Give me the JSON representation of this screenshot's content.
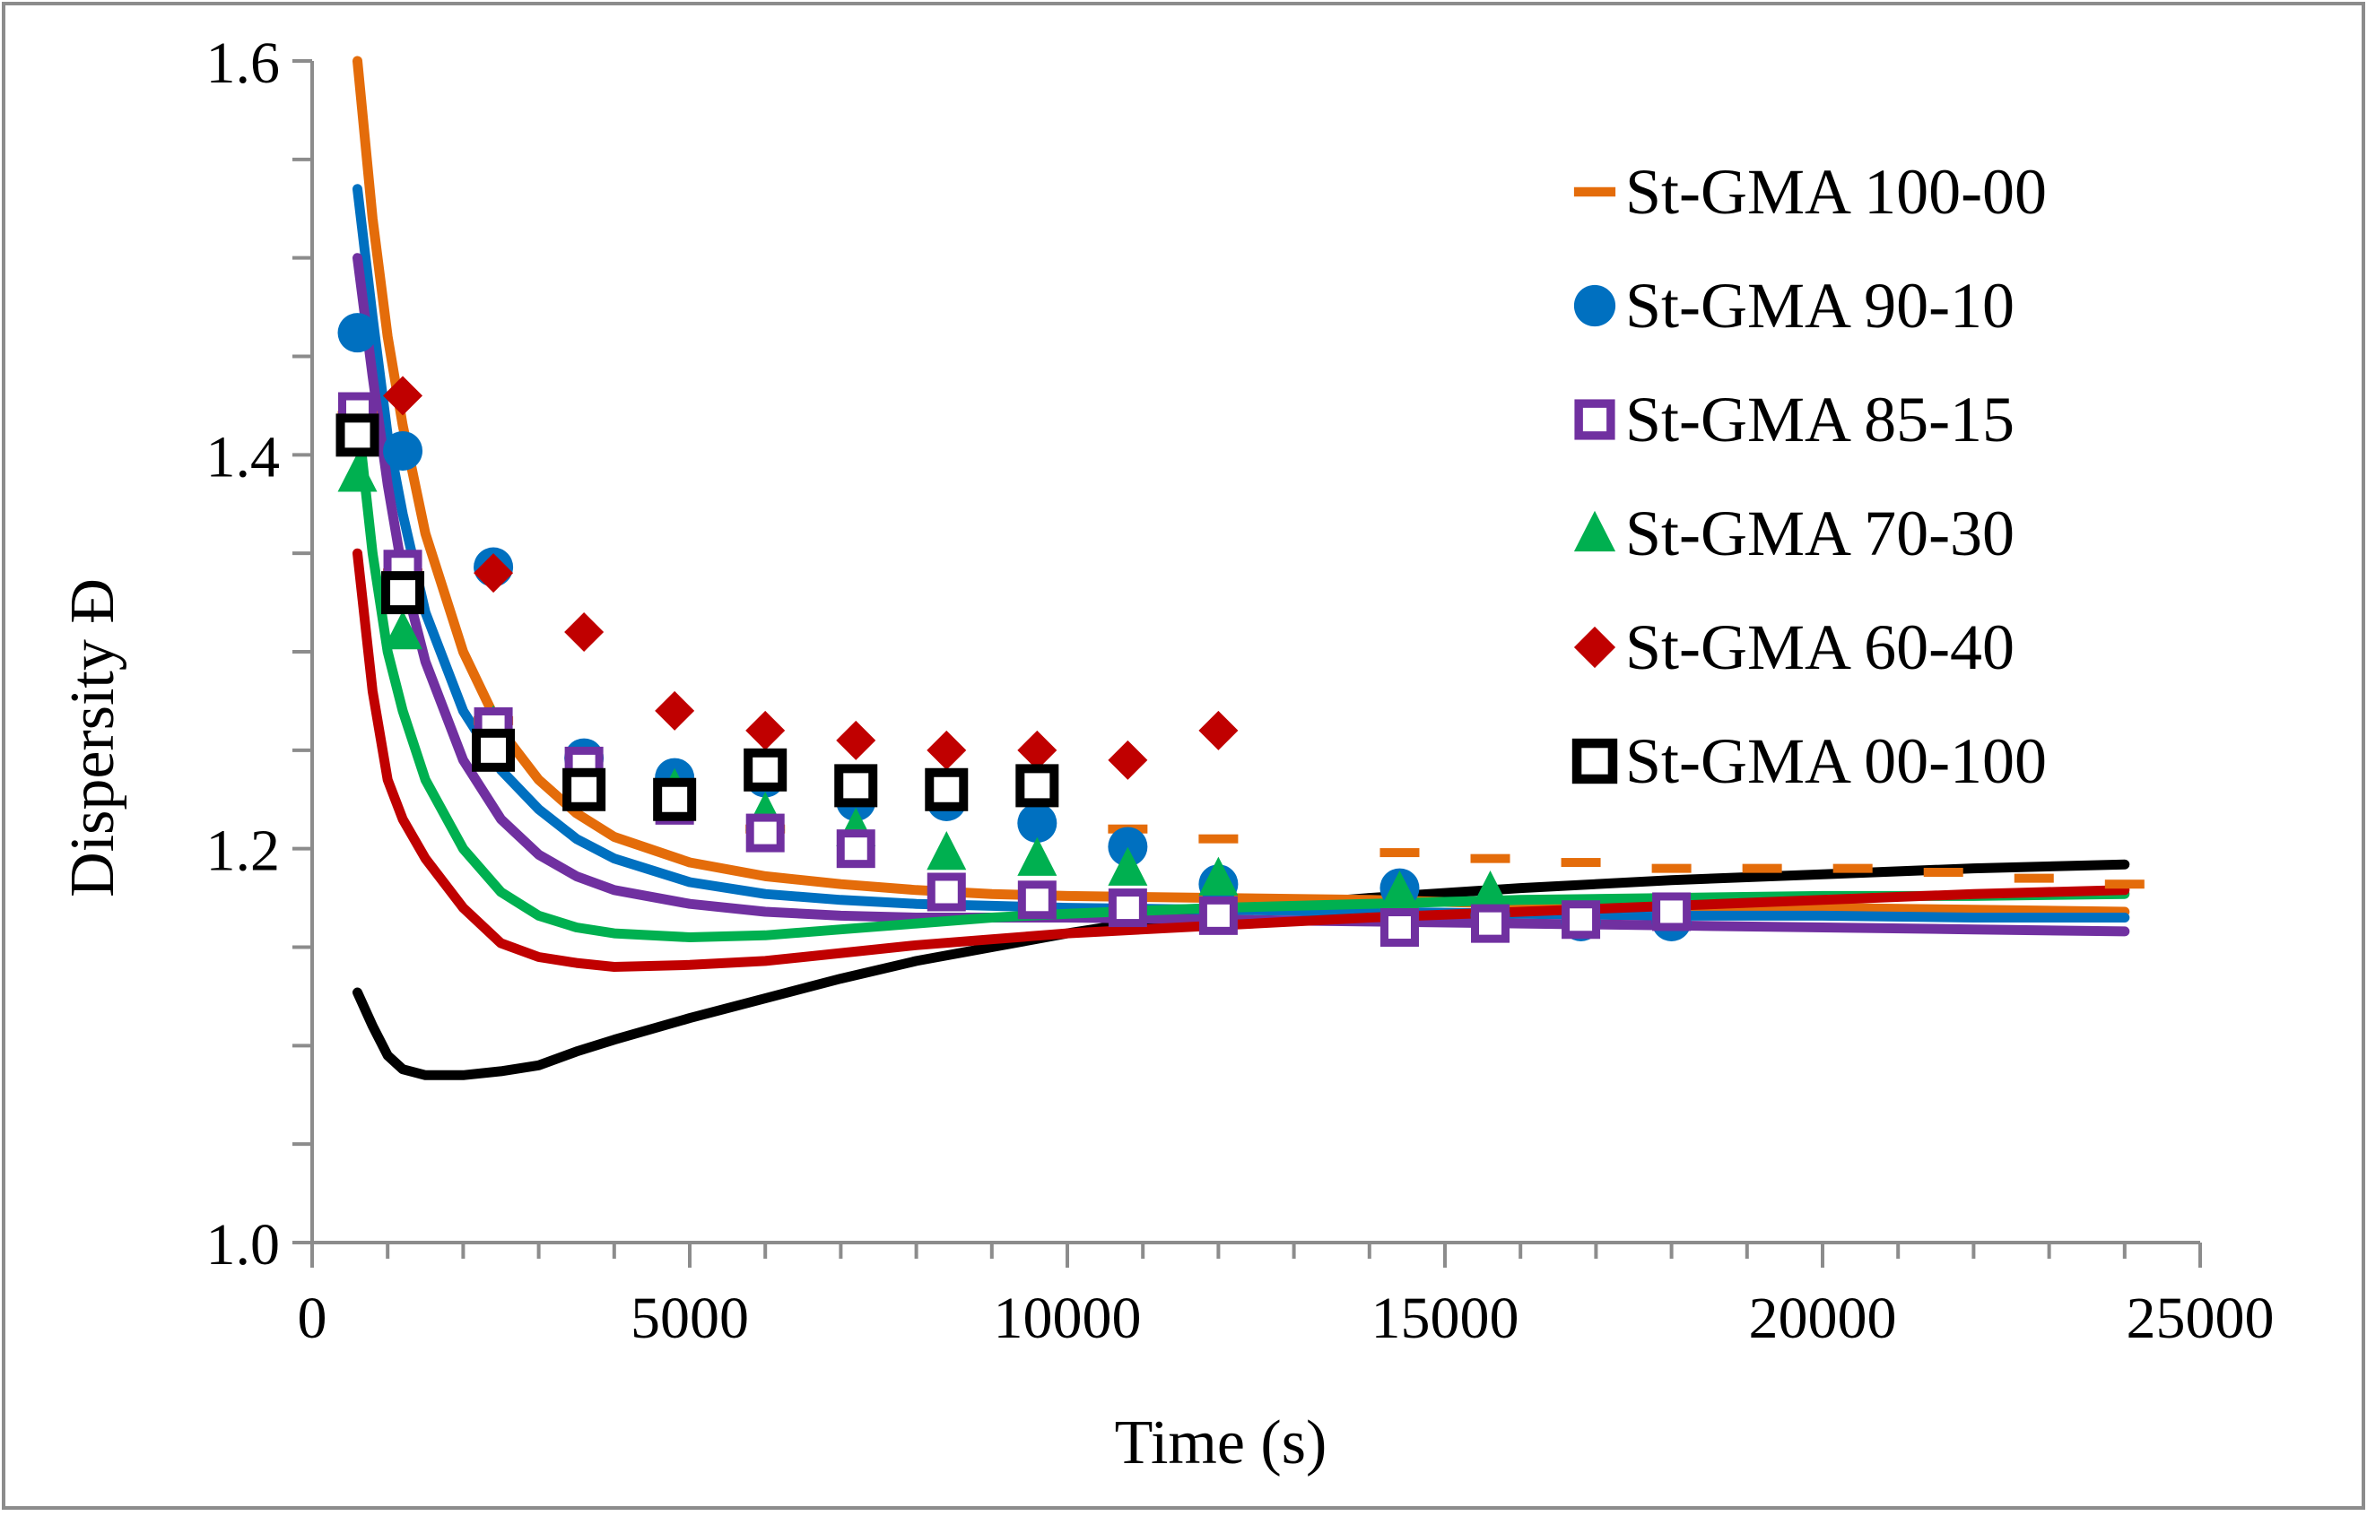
{
  "chart_data": {
    "type": "scatter",
    "title": "",
    "xlabel": "Time  (s)",
    "ylabel": "Dispersity  Đ",
    "xlim": [
      0,
      25000
    ],
    "ylim": [
      1.0,
      1.6
    ],
    "x_ticks": [
      0,
      5000,
      10000,
      15000,
      20000,
      25000
    ],
    "x_tick_labels": [
      "0",
      "5000",
      "10000",
      "15000",
      "20000",
      "25000"
    ],
    "y_ticks": [
      1.0,
      1.2,
      1.4,
      1.6
    ],
    "y_tick_labels": [
      "1.0",
      "1.2",
      "1.4",
      "1.6"
    ],
    "legend_position": "top-right",
    "series": [
      {
        "name": "St-GMA 100-00",
        "color": "#E46C0A",
        "marker": "dash",
        "points": [
          [
            600,
            1.42
          ],
          [
            1200,
            1.34
          ],
          [
            2400,
            1.265
          ],
          [
            3600,
            1.235
          ],
          [
            4800,
            1.225
          ],
          [
            6000,
            1.21
          ],
          [
            7200,
            1.24
          ],
          [
            8400,
            1.235
          ],
          [
            9600,
            1.225
          ],
          [
            10800,
            1.21
          ],
          [
            12000,
            1.205
          ],
          [
            14400,
            1.198
          ],
          [
            15600,
            1.195
          ],
          [
            16800,
            1.193
          ],
          [
            18000,
            1.19
          ],
          [
            19200,
            1.19
          ],
          [
            20400,
            1.19
          ],
          [
            21600,
            1.188
          ],
          [
            22800,
            1.185
          ],
          [
            24000,
            1.182
          ]
        ],
        "model": [
          [
            600,
            1.6
          ],
          [
            800,
            1.52
          ],
          [
            1000,
            1.46
          ],
          [
            1200,
            1.415
          ],
          [
            1500,
            1.36
          ],
          [
            2000,
            1.3
          ],
          [
            2500,
            1.26
          ],
          [
            3000,
            1.235
          ],
          [
            3500,
            1.218
          ],
          [
            4000,
            1.206
          ],
          [
            5000,
            1.193
          ],
          [
            6000,
            1.186
          ],
          [
            7000,
            1.182
          ],
          [
            8000,
            1.179
          ],
          [
            9000,
            1.177
          ],
          [
            10000,
            1.176
          ],
          [
            12000,
            1.175
          ],
          [
            14000,
            1.174
          ],
          [
            16000,
            1.172
          ],
          [
            18000,
            1.171
          ],
          [
            20000,
            1.17
          ],
          [
            22000,
            1.169
          ],
          [
            24000,
            1.168
          ]
        ]
      },
      {
        "name": "St-GMA 90-10",
        "color": "#0070C0",
        "marker": "circle",
        "points": [
          [
            600,
            1.462
          ],
          [
            1200,
            1.402
          ],
          [
            2400,
            1.343
          ],
          [
            3600,
            1.246
          ],
          [
            4800,
            1.236
          ],
          [
            6000,
            1.236
          ],
          [
            7200,
            1.224
          ],
          [
            8400,
            1.224
          ],
          [
            9600,
            1.213
          ],
          [
            10800,
            1.201
          ],
          [
            12000,
            1.182
          ],
          [
            14400,
            1.18
          ],
          [
            15600,
            1.166
          ],
          [
            16800,
            1.163
          ],
          [
            18000,
            1.163
          ]
        ],
        "model": [
          [
            600,
            1.535
          ],
          [
            800,
            1.47
          ],
          [
            1000,
            1.41
          ],
          [
            1200,
            1.37
          ],
          [
            1500,
            1.32
          ],
          [
            2000,
            1.27
          ],
          [
            2500,
            1.24
          ],
          [
            3000,
            1.22
          ],
          [
            3500,
            1.205
          ],
          [
            4000,
            1.195
          ],
          [
            5000,
            1.183
          ],
          [
            6000,
            1.177
          ],
          [
            7000,
            1.174
          ],
          [
            8000,
            1.172
          ],
          [
            9000,
            1.171
          ],
          [
            10000,
            1.17
          ],
          [
            12000,
            1.169
          ],
          [
            14000,
            1.168
          ],
          [
            16000,
            1.167
          ],
          [
            18000,
            1.166
          ],
          [
            20000,
            1.166
          ],
          [
            22000,
            1.165
          ],
          [
            24000,
            1.165
          ]
        ]
      },
      {
        "name": "St-GMA 85-15",
        "color": "#7030A0",
        "marker": "open-square",
        "points": [
          [
            600,
            1.422
          ],
          [
            1200,
            1.342
          ],
          [
            2400,
            1.262
          ],
          [
            3600,
            1.242
          ],
          [
            4800,
            1.222
          ],
          [
            6000,
            1.208
          ],
          [
            7200,
            1.2
          ],
          [
            8400,
            1.178
          ],
          [
            9600,
            1.174
          ],
          [
            10800,
            1.17
          ],
          [
            12000,
            1.166
          ],
          [
            14400,
            1.16
          ],
          [
            15600,
            1.162
          ],
          [
            16800,
            1.164
          ],
          [
            18000,
            1.168
          ]
        ],
        "model": [
          [
            600,
            1.5
          ],
          [
            800,
            1.44
          ],
          [
            1000,
            1.385
          ],
          [
            1200,
            1.34
          ],
          [
            1500,
            1.295
          ],
          [
            2000,
            1.245
          ],
          [
            2500,
            1.215
          ],
          [
            3000,
            1.197
          ],
          [
            3500,
            1.186
          ],
          [
            4000,
            1.179
          ],
          [
            5000,
            1.172
          ],
          [
            6000,
            1.168
          ],
          [
            7000,
            1.166
          ],
          [
            8000,
            1.165
          ],
          [
            9000,
            1.165
          ],
          [
            10000,
            1.165
          ],
          [
            12000,
            1.164
          ],
          [
            14000,
            1.163
          ],
          [
            16000,
            1.162
          ],
          [
            18000,
            1.161
          ],
          [
            20000,
            1.16
          ],
          [
            22000,
            1.159
          ],
          [
            24000,
            1.158
          ]
        ]
      },
      {
        "name": "St-GMA 70-30",
        "color": "#00B050",
        "marker": "triangle",
        "points": [
          [
            600,
            1.39
          ],
          [
            1200,
            1.31
          ],
          [
            2400,
            1.262
          ],
          [
            3600,
            1.24
          ],
          [
            4800,
            1.23
          ],
          [
            6000,
            1.218
          ],
          [
            7200,
            1.21
          ],
          [
            8400,
            1.198
          ],
          [
            9600,
            1.195
          ],
          [
            10800,
            1.19
          ],
          [
            12000,
            1.185
          ],
          [
            14400,
            1.178
          ],
          [
            15600,
            1.178
          ]
        ],
        "model": [
          [
            600,
            1.42
          ],
          [
            800,
            1.35
          ],
          [
            1000,
            1.3
          ],
          [
            1200,
            1.27
          ],
          [
            1500,
            1.235
          ],
          [
            2000,
            1.2
          ],
          [
            2500,
            1.178
          ],
          [
            3000,
            1.166
          ],
          [
            3500,
            1.16
          ],
          [
            4000,
            1.157
          ],
          [
            5000,
            1.155
          ],
          [
            6000,
            1.156
          ],
          [
            7000,
            1.159
          ],
          [
            8000,
            1.162
          ],
          [
            9000,
            1.165
          ],
          [
            10000,
            1.167
          ],
          [
            12000,
            1.17
          ],
          [
            14000,
            1.172
          ],
          [
            16000,
            1.174
          ],
          [
            18000,
            1.175
          ],
          [
            20000,
            1.176
          ],
          [
            22000,
            1.176
          ],
          [
            24000,
            1.177
          ]
        ]
      },
      {
        "name": "St-GMA 60-40",
        "color": "#C00000",
        "marker": "diamond",
        "points": [
          [
            1200,
            1.43
          ],
          [
            2400,
            1.34
          ],
          [
            3600,
            1.31
          ],
          [
            4800,
            1.27
          ],
          [
            6000,
            1.26
          ],
          [
            7200,
            1.255
          ],
          [
            8400,
            1.25
          ],
          [
            9600,
            1.25
          ],
          [
            10800,
            1.245
          ],
          [
            12000,
            1.26
          ]
        ],
        "model": [
          [
            600,
            1.35
          ],
          [
            800,
            1.28
          ],
          [
            1000,
            1.235
          ],
          [
            1200,
            1.215
          ],
          [
            1500,
            1.195
          ],
          [
            2000,
            1.17
          ],
          [
            2500,
            1.152
          ],
          [
            3000,
            1.145
          ],
          [
            3500,
            1.142
          ],
          [
            4000,
            1.14
          ],
          [
            5000,
            1.141
          ],
          [
            6000,
            1.143
          ],
          [
            7000,
            1.147
          ],
          [
            8000,
            1.151
          ],
          [
            9000,
            1.154
          ],
          [
            10000,
            1.157
          ],
          [
            12000,
            1.161
          ],
          [
            14000,
            1.165
          ],
          [
            16000,
            1.168
          ],
          [
            18000,
            1.171
          ],
          [
            20000,
            1.174
          ],
          [
            22000,
            1.177
          ],
          [
            24000,
            1.179
          ]
        ]
      },
      {
        "name": "St-GMA 00-100",
        "color": "#000000",
        "marker": "open-square-thick",
        "points": [
          [
            600,
            1.41
          ],
          [
            1200,
            1.33
          ],
          [
            2400,
            1.25
          ],
          [
            3600,
            1.23
          ],
          [
            4800,
            1.225
          ],
          [
            6000,
            1.24
          ],
          [
            7200,
            1.232
          ],
          [
            8400,
            1.23
          ],
          [
            9600,
            1.232
          ]
        ],
        "model": [
          [
            600,
            1.127
          ],
          [
            800,
            1.11
          ],
          [
            1000,
            1.095
          ],
          [
            1200,
            1.088
          ],
          [
            1500,
            1.085
          ],
          [
            2000,
            1.085
          ],
          [
            2500,
            1.087
          ],
          [
            3000,
            1.09
          ],
          [
            3500,
            1.097
          ],
          [
            4000,
            1.103
          ],
          [
            5000,
            1.114
          ],
          [
            6000,
            1.124
          ],
          [
            7000,
            1.134
          ],
          [
            8000,
            1.143
          ],
          [
            9000,
            1.15
          ],
          [
            10000,
            1.157
          ],
          [
            11000,
            1.163
          ],
          [
            12000,
            1.169
          ],
          [
            14000,
            1.175
          ],
          [
            16000,
            1.18
          ],
          [
            18000,
            1.184
          ],
          [
            20000,
            1.187
          ],
          [
            22000,
            1.19
          ],
          [
            24000,
            1.192
          ]
        ]
      }
    ]
  }
}
